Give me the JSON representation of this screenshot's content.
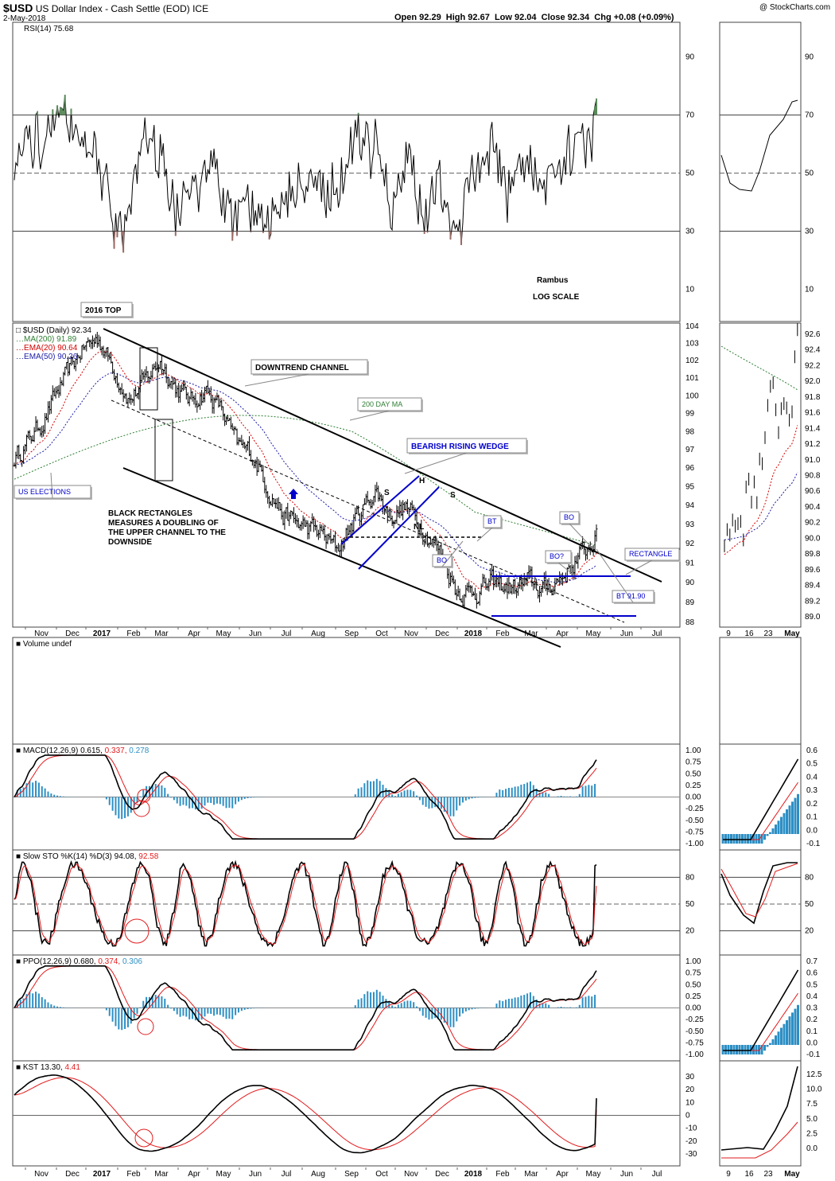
{
  "header": {
    "symbol": "$USD",
    "name": "US Dollar Index - Cash Settle (EOD) ICE",
    "date": "2-May-2018",
    "copyright": "@ StockCharts.com",
    "quote": "Open 92.29  High 92.67  Low 92.04  Close 92.34  Chg +0.08 (+0.09%)"
  },
  "colors": {
    "price_bar": "#000000",
    "ma200": "#2e7d32",
    "ema20": "#d40000",
    "ema50": "#1c1ca8",
    "hist": "#2d8fc4",
    "signal": "#e31a1c",
    "rsi_high_fill": "#5a8a5a",
    "rsi_low_fill": "#9a6a63",
    "annotation_blue": "#0000cc"
  },
  "panels": {
    "rsi": {
      "label": "RSI(14)",
      "value": "75.68",
      "ticks": [
        "90",
        "70",
        "50",
        "30",
        "10"
      ]
    },
    "price": {
      "legend": [
        {
          "text": "$USD (Daily) 92.34",
          "color": "#000000"
        },
        {
          "text": "MA(200) 91.89",
          "color": "#2e7d32"
        },
        {
          "text": "EMA(20) 90.64",
          "color": "#d40000"
        },
        {
          "text": "EMA(50) 90.26",
          "color": "#1c1ca8"
        }
      ],
      "ticks": [
        "104",
        "103",
        "102",
        "101",
        "100",
        "99",
        "98",
        "97",
        "96",
        "95",
        "94",
        "93",
        "92",
        "91",
        "90",
        "89",
        "88"
      ],
      "right_ticks": [
        "92.6",
        "92.4",
        "92.2",
        "92.0",
        "91.8",
        "91.6",
        "91.4",
        "91.2",
        "91.0",
        "90.8",
        "90.6",
        "90.4",
        "90.2",
        "90.0",
        "89.8",
        "89.6",
        "89.4",
        "89.2",
        "89.0"
      ]
    },
    "volume": {
      "label": "Volume undef"
    },
    "macd": {
      "label": "MACD(12,26,9)",
      "v1": "0.615,",
      "v2": "0.337,",
      "v3": "0.278",
      "ticks": [
        "1.00",
        "0.75",
        "0.50",
        "0.25",
        "0.00",
        "-0.25",
        "-0.50",
        "-0.75",
        "-1.00"
      ],
      "right_ticks": [
        "0.6",
        "0.5",
        "0.4",
        "0.3",
        "0.2",
        "0.1",
        "0.0",
        "-0.1"
      ]
    },
    "sto": {
      "label": "Slow STO %K(14) %D(3)",
      "v1": "94.08,",
      "v2": "92.58",
      "ticks": [
        "80",
        "50",
        "20"
      ]
    },
    "ppo": {
      "label": "PPO(12,26,9)",
      "v1": "0.680,",
      "v2": "0.374,",
      "v3": "0.306",
      "ticks": [
        "1.00",
        "0.75",
        "0.50",
        "0.25",
        "0.00",
        "-0.25",
        "-0.50",
        "-0.75",
        "-1.00"
      ],
      "right_ticks": [
        "0.7",
        "0.6",
        "0.5",
        "0.4",
        "0.3",
        "0.2",
        "0.1",
        "0.0",
        "-0.1"
      ]
    },
    "kst": {
      "label": "KST",
      "v1": "13.30,",
      "v2": "4.41",
      "ticks": [
        "30",
        "20",
        "10",
        "0",
        "-10",
        "-20",
        "-30"
      ],
      "right_ticks": [
        "12.5",
        "10.0",
        "7.5",
        "5.0",
        "2.5",
        "0.0"
      ]
    }
  },
  "x_axis": [
    "Nov",
    "Dec",
    "2017",
    "Feb",
    "Mar",
    "Apr",
    "May",
    "Jun",
    "Jul",
    "Aug",
    "Sep",
    "Oct",
    "Nov",
    "Dec",
    "2018",
    "Feb",
    "Mar",
    "Apr",
    "May",
    "Jun",
    "Jul"
  ],
  "x_axis_right": [
    "9",
    "16",
    "23",
    "May"
  ],
  "annotations": {
    "rambus": "Rambus",
    "log_scale": "LOG SCALE",
    "top_2016": "2016 TOP",
    "downtrend_channel": "DOWNTREND CHANNEL",
    "day_ma_200": "200 DAY MA",
    "us_elections": "US ELECTIONS",
    "black_rect_1": "BLACK RECTANGLES",
    "black_rect_2": "MEASURES A DOUBLING OF",
    "black_rect_3": "THE UPPER CHANNEL TO THE",
    "black_rect_4": "DOWNSIDE",
    "bearish_wedge": "BEARISH RISING WEDGE",
    "s_left": "S",
    "h": "H",
    "s_right": "S",
    "nl": "NL",
    "bt": "BT",
    "bo_1": "BO",
    "bo_2": "BO",
    "bo_q": "BO?",
    "rectangle": "RECTANGLE",
    "bt_9190": "BT 91.90"
  },
  "chart_data": {
    "type": "line",
    "title": "$USD US Dollar Index - Cash Settle (EOD) ICE",
    "xlabel": "",
    "ylabel": "",
    "scale": "log",
    "ylim": [
      88,
      104
    ],
    "grid": false,
    "legend": "top-left",
    "x": [
      "Nov",
      "Dec",
      "2017",
      "Feb",
      "Mar",
      "Apr",
      "May",
      "Jun",
      "Jul",
      "Aug",
      "Sep",
      "Oct",
      "Nov",
      "Dec",
      "2018",
      "Feb",
      "Mar",
      "Apr",
      "May"
    ],
    "series": [
      {
        "name": "$USD (Daily) 92.34",
        "values": [
          96.7,
          101.0,
          102.6,
          100.2,
          101.5,
          100.0,
          98.2,
          97.0,
          95.1,
          92.8,
          91.9,
          93.5,
          94.5,
          93.1,
          91.5,
          89.3,
          89.8,
          89.9,
          92.34
        ]
      },
      {
        "name": "MA(200) 91.89",
        "values": [
          95.4,
          95.8,
          96.3,
          96.9,
          97.6,
          98.2,
          98.7,
          98.9,
          98.5,
          97.8,
          96.9,
          95.9,
          95.0,
          94.1,
          93.3,
          92.6,
          92.1,
          91.9,
          91.89
        ]
      },
      {
        "name": "EMA(20) 90.64",
        "values": [
          96.0,
          100.0,
          102.0,
          100.6,
          101.3,
          100.3,
          98.8,
          97.4,
          95.6,
          93.5,
          92.2,
          93.0,
          94.1,
          93.3,
          92.0,
          90.0,
          89.8,
          89.7,
          90.64
        ]
      },
      {
        "name": "EMA(50) 90.26",
        "values": [
          95.5,
          98.4,
          100.6,
          100.9,
          101.0,
          100.5,
          99.6,
          98.2,
          96.6,
          94.8,
          93.3,
          93.1,
          93.6,
          93.4,
          92.4,
          90.9,
          90.2,
          89.9,
          90.26
        ]
      }
    ],
    "indicators": [
      {
        "name": "RSI(14)",
        "last": 75.68
      },
      {
        "name": "MACD(12,26,9)",
        "values": [
          0.615,
          0.337,
          0.278
        ]
      },
      {
        "name": "Slow STO %K(14) %D(3)",
        "values": [
          94.08,
          92.58
        ]
      },
      {
        "name": "PPO(12,26,9)",
        "values": [
          0.68,
          0.374,
          0.306
        ]
      },
      {
        "name": "KST",
        "values": [
          13.3,
          4.41
        ]
      }
    ]
  }
}
